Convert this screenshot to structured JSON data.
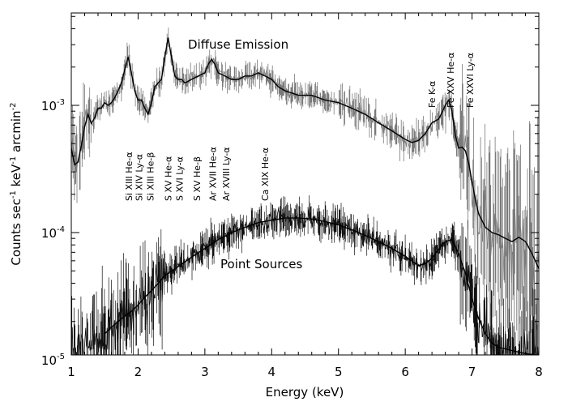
{
  "chart_data": {
    "type": "line",
    "title": "",
    "xlabel": "Energy (keV)",
    "ylabel_main": "Counts sec",
    "ylabel_exp1": "-1",
    "ylabel_mid": " keV",
    "ylabel_exp2": "-1",
    "ylabel_unit": " arcmin",
    "ylabel_exp3": "-2",
    "xlim": [
      1,
      8
    ],
    "ylim": [
      1e-05,
      0.0045
    ],
    "yscale": "log",
    "x_ticks": [
      "1",
      "2",
      "3",
      "4",
      "5",
      "6",
      "7",
      "8"
    ],
    "y_ticks": [
      {
        "value": 0.001,
        "base": "10",
        "exp": "-3"
      },
      {
        "value": 0.0001,
        "base": "10",
        "exp": "-4"
      },
      {
        "value": 1e-05,
        "base": "10",
        "exp": "-5"
      }
    ],
    "grid": false,
    "colors": {
      "data": "#7a7a7a",
      "model": "#000000",
      "point_data": "#111111"
    },
    "annotations": [
      {
        "text": "Diffuse Emission",
        "x": 3.7,
        "y": 0.0036
      },
      {
        "text": "Point Sources",
        "x": 3.8,
        "y": 5.8e-05
      }
    ],
    "line_labels": [
      {
        "text": "Si XIII He-α",
        "x": 1.86
      },
      {
        "text": "Si XIV Ly-α",
        "x": 2.01
      },
      {
        "text": "Si XIII He-β",
        "x": 2.18
      },
      {
        "text": "S XV He-α",
        "x": 2.45
      },
      {
        "text": "S XVI Ly-α",
        "x": 2.62
      },
      {
        "text": "S XV He-β",
        "x": 2.88
      },
      {
        "text": "Ar XVII He-α",
        "x": 3.12
      },
      {
        "text": "Ar XVIII Ly-α",
        "x": 3.32
      },
      {
        "text": "Ca XIX He-α",
        "x": 3.9
      },
      {
        "text": "Fe K-α",
        "x": 6.4
      },
      {
        "text": "Fe XXV He-α",
        "x": 6.68
      },
      {
        "text": "Fe XXVI Ly-α",
        "x": 6.97
      }
    ],
    "series": [
      {
        "key": "diffuse_model",
        "x": [
          1.0,
          1.05,
          1.1,
          1.15,
          1.2,
          1.25,
          1.3,
          1.35,
          1.4,
          1.45,
          1.5,
          1.55,
          1.6,
          1.65,
          1.7,
          1.75,
          1.8,
          1.85,
          1.9,
          1.95,
          2.0,
          2.05,
          2.1,
          2.15,
          2.2,
          2.25,
          2.3,
          2.35,
          2.4,
          2.45,
          2.5,
          2.55,
          2.6,
          2.65,
          2.7,
          2.8,
          2.9,
          3.0,
          3.05,
          3.1,
          3.15,
          3.2,
          3.3,
          3.4,
          3.5,
          3.6,
          3.7,
          3.8,
          3.9,
          4.0,
          4.1,
          4.2,
          4.4,
          4.6,
          4.8,
          5.0,
          5.2,
          5.4,
          5.6,
          5.8,
          6.0,
          6.1,
          6.2,
          6.3,
          6.4,
          6.5,
          6.55,
          6.6,
          6.65,
          6.7,
          6.75,
          6.8,
          6.85,
          6.9,
          6.95,
          7.0,
          7.05,
          7.1,
          7.2,
          7.3,
          7.4,
          7.5,
          7.6,
          7.7,
          7.8,
          7.9,
          8.0
        ],
        "y": [
          0.00046,
          0.00034,
          0.00036,
          0.00048,
          0.00068,
          0.00085,
          0.00072,
          0.0008,
          0.00095,
          0.00095,
          0.00105,
          0.001,
          0.00105,
          0.00115,
          0.0013,
          0.0015,
          0.0019,
          0.0024,
          0.0018,
          0.0013,
          0.0011,
          0.0011,
          0.00095,
          0.00085,
          0.00105,
          0.0014,
          0.0015,
          0.0016,
          0.0024,
          0.0034,
          0.0024,
          0.0017,
          0.0016,
          0.0016,
          0.0015,
          0.0016,
          0.0017,
          0.0018,
          0.0021,
          0.0023,
          0.0021,
          0.0018,
          0.0017,
          0.0016,
          0.0016,
          0.0017,
          0.0017,
          0.0018,
          0.0017,
          0.0016,
          0.0014,
          0.0013,
          0.0012,
          0.0012,
          0.0011,
          0.00105,
          0.00095,
          0.00085,
          0.00073,
          0.00063,
          0.00054,
          0.00051,
          0.00053,
          0.0006,
          0.00073,
          0.00078,
          0.00088,
          0.001,
          0.0011,
          0.0009,
          0.00058,
          0.00046,
          0.00047,
          0.00044,
          0.00035,
          0.00025,
          0.00018,
          0.00014,
          0.00011,
          0.0001,
          9.6e-05,
          9e-05,
          8.5e-05,
          9.2e-05,
          8.5e-05,
          6.8e-05,
          5.2e-05
        ]
      },
      {
        "key": "point_model",
        "x": [
          1.5,
          1.6,
          1.7,
          1.8,
          1.9,
          2.0,
          2.1,
          2.2,
          2.3,
          2.4,
          2.5,
          2.6,
          2.8,
          3.0,
          3.2,
          3.4,
          3.6,
          3.8,
          4.0,
          4.2,
          4.4,
          4.6,
          4.8,
          5.0,
          5.2,
          5.4,
          5.6,
          5.8,
          6.0,
          6.2,
          6.3,
          6.4,
          6.5,
          6.6,
          6.7,
          6.8,
          6.9,
          7.0,
          7.1,
          7.2,
          7.3,
          7.4,
          7.5,
          7.6,
          7.7,
          7.8,
          7.9,
          8.0
        ],
        "y": [
          1.6e-05,
          1.8e-05,
          2e-05,
          2.2e-05,
          2.4e-05,
          2.7e-05,
          3.1e-05,
          3.5e-05,
          4e-05,
          4.6e-05,
          5e-05,
          5.4e-05,
          6.4e-05,
          7.5e-05,
          8.8e-05,
          0.0001,
          0.00011,
          0.00012,
          0.000125,
          0.00013,
          0.00013,
          0.000128,
          0.000122,
          0.000115,
          0.000105,
          9.5e-05,
          8.5e-05,
          7.5e-05,
          6.5e-05,
          5.5e-05,
          5.7e-05,
          6.3e-05,
          7.4e-05,
          8.5e-05,
          8.8e-05,
          6.8e-05,
          4.8e-05,
          3e-05,
          2.1e-05,
          1.6e-05,
          1.35e-05,
          1.25e-05,
          1.22e-05,
          1.18e-05,
          1.15e-05,
          1.12e-05,
          1.1e-05,
          1.08e-05
        ]
      }
    ]
  }
}
